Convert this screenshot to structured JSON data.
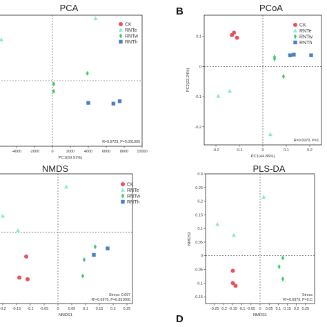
{
  "legend": [
    {
      "label": "CK",
      "color": "#e8505b",
      "marker": "circle"
    },
    {
      "label": "RNTe",
      "color": "#8fe6dc",
      "marker": "triangle"
    },
    {
      "label": "RNTw",
      "color": "#3ec76a",
      "marker": "diamond"
    },
    {
      "label": "RNTh",
      "color": "#4a7fc1",
      "marker": "square"
    }
  ],
  "chart_data": [
    {
      "panel": "A",
      "panel_label": "",
      "type": "scatter",
      "title": "PCA",
      "xlabel": "PC1(69.91%)",
      "ylabel": "",
      "xlim": [
        -6000,
        10000
      ],
      "ylim": [
        -4000,
        4000
      ],
      "xticks": [
        -4000,
        -2000,
        0,
        2000,
        4000,
        6000,
        8000,
        10000
      ],
      "yticks": [],
      "annotation": "R=0.9729, P=0.001000",
      "zero_lines": true,
      "legend_position": "top-right",
      "series": [
        {
          "name": "CK",
          "points": []
        },
        {
          "name": "RNTe",
          "points": [
            [
              -5700,
              2500
            ],
            [
              4800,
              3800
            ]
          ]
        },
        {
          "name": "RNTw",
          "points": [
            [
              150,
              -200
            ],
            [
              150,
              -650
            ],
            [
              3900,
              450
            ]
          ]
        },
        {
          "name": "RNTh",
          "points": [
            [
              4000,
              -1350
            ],
            [
              6800,
              -1400
            ],
            [
              7500,
              -1250
            ]
          ]
        }
      ]
    },
    {
      "panel": "B",
      "panel_label": "B",
      "type": "scatter",
      "title": "PCoA",
      "xlabel": "PC1(44.86%)",
      "ylabel": "PC2(22.24%)",
      "xlim": [
        -0.25,
        0.25
      ],
      "ylim": [
        -0.26,
        0.17
      ],
      "xticks": [
        -0.2,
        -0.1,
        0,
        0.1,
        0.2
      ],
      "yticks": [
        -0.2,
        -0.1,
        0,
        0.1
      ],
      "annotation": "R=0.6979, P=0.",
      "zero_lines": true,
      "legend_position": "top-right",
      "series": [
        {
          "name": "CK",
          "points": [
            [
              -0.123,
              0.112
            ],
            [
              -0.132,
              0.104
            ],
            [
              -0.11,
              0.095
            ]
          ]
        },
        {
          "name": "RNTe",
          "points": [
            [
              -0.19,
              -0.098
            ],
            [
              -0.141,
              -0.082
            ],
            [
              0.032,
              -0.225
            ]
          ]
        },
        {
          "name": "RNTw",
          "points": [
            [
              0.05,
              0.025
            ],
            [
              0.05,
              0.031
            ],
            [
              0.088,
              -0.033
            ]
          ]
        },
        {
          "name": "RNTh",
          "points": [
            [
              0.132,
              0.039
            ],
            [
              0.116,
              0.037
            ],
            [
              0.206,
              0.037
            ]
          ]
        }
      ]
    },
    {
      "panel": "C",
      "panel_label": "",
      "type": "scatter",
      "title": "NMDS",
      "xlabel": "NMDS1",
      "ylabel": "",
      "xlim": [
        -0.215,
        0.27
      ],
      "ylim": [
        -0.22,
        0.18
      ],
      "xticks": [
        -0.2,
        -0.15,
        -0.1,
        -0.05,
        0,
        0.05,
        0.1,
        0.15,
        0.2,
        0.25
      ],
      "yticks": [],
      "annotation_lines": [
        "Stress: 0.097",
        "R²=0.6979, P=0.031000"
      ],
      "zero_lines": true,
      "legend_position": "top-right",
      "series": [
        {
          "name": "CK",
          "points": [
            [
              -0.115,
              -0.075
            ],
            [
              -0.14,
              -0.14
            ],
            [
              -0.11,
              -0.145
            ]
          ]
        },
        {
          "name": "RNTe",
          "points": [
            [
              -0.2,
              0.05
            ],
            [
              0.03,
              0.14
            ],
            [
              -0.145,
              0.005
            ]
          ]
        },
        {
          "name": "RNTw",
          "points": [
            [
              0.095,
              -0.085
            ],
            [
              0.135,
              -0.045
            ],
            [
              0.09,
              -0.135
            ]
          ]
        },
        {
          "name": "RNTh",
          "points": [
            [
              0.13,
              -0.07
            ],
            [
              0.18,
              -0.05
            ]
          ]
        }
      ]
    },
    {
      "panel": "D",
      "panel_label": "D",
      "type": "scatter",
      "title": "PLS-DA",
      "xlabel": "NMDS1",
      "ylabel": "NMDS2",
      "xlim": [
        -0.3,
        0.3
      ],
      "ylim": [
        -0.175,
        0.3
      ],
      "xticks": [
        -0.25,
        -0.2,
        -0.15,
        -0.1,
        -0.05,
        0,
        0.05,
        0.1,
        0.15,
        0.2,
        0.25
      ],
      "yticks": [
        -0.15,
        -0.1,
        -0.05,
        0,
        0.05,
        0.1,
        0.15,
        0.2,
        0.25,
        0.3
      ],
      "annotation_lines": [
        "Stress",
        "R²=0.6979, P=0.C"
      ],
      "zero_lines": true,
      "legend_position": "top-right",
      "series": [
        {
          "name": "CK",
          "points": [
            [
              -0.15,
              -0.055
            ],
            [
              -0.15,
              -0.1
            ],
            [
              -0.135,
              -0.11
            ]
          ]
        },
        {
          "name": "RNTe",
          "points": [
            [
              -0.235,
              0.115
            ],
            [
              -0.145,
              0.075
            ],
            [
              0.02,
              0.215
            ]
          ]
        },
        {
          "name": "RNTw",
          "points": [
            [
              0.125,
              -0.008
            ],
            [
              0.125,
              -0.085
            ],
            [
              0.105,
              -0.04
            ]
          ]
        },
        {
          "name": "RNTh",
          "points": []
        }
      ]
    }
  ]
}
